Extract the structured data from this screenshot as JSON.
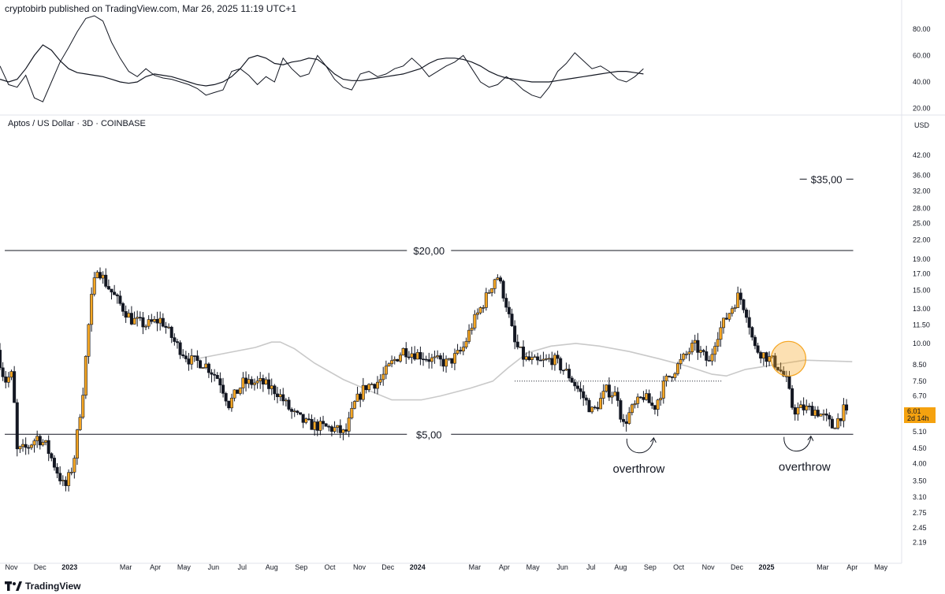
{
  "header": {
    "published": "cryptobirb published on TradingView.com, Mar 26, 2025 11:19 UTC+1",
    "symbol": "Aptos / US Dollar · 3D · COINBASE",
    "brand": "TradingView",
    "currency": "USD"
  },
  "price_tag": {
    "price": "6.01",
    "countdown": "2d 14h"
  },
  "chart_data": [
    {
      "type": "line",
      "panel": "oscillator",
      "ylim": [
        15,
        90
      ],
      "yticks": [
        "80.00",
        "60.00",
        "40.00",
        "20.00"
      ],
      "ytick_values": [
        80,
        60,
        40,
        20
      ],
      "x_start": "2022-10-20",
      "x_step_days": 9,
      "series": [
        {
          "values": [
            52,
            38,
            36,
            45,
            28,
            25,
            40,
            55,
            66,
            78,
            88,
            90,
            86,
            70,
            58,
            48,
            44,
            50,
            45,
            43,
            42,
            40,
            38,
            35,
            30,
            32,
            34,
            48,
            50,
            45,
            38,
            44,
            40,
            58,
            50,
            44,
            46,
            60,
            52,
            42,
            36,
            34,
            46,
            48,
            44,
            46,
            50,
            52,
            58,
            52,
            44,
            48,
            52,
            55,
            60,
            50,
            40,
            36,
            38,
            44,
            40,
            34,
            30,
            28,
            36,
            48,
            54,
            62,
            56,
            50,
            52,
            48,
            42,
            40,
            44,
            50
          ]
        },
        {
          "values": [
            42,
            40,
            42,
            50,
            60,
            68,
            64,
            56,
            50,
            47,
            46,
            45,
            44,
            42,
            40,
            39,
            40,
            44,
            46,
            45,
            44,
            42,
            40,
            38,
            37,
            38,
            40,
            44,
            50,
            58,
            60,
            58,
            54,
            53,
            55,
            56,
            58,
            57,
            52,
            46,
            42,
            41,
            41,
            42,
            43,
            44,
            45,
            46,
            48,
            50,
            54,
            57,
            58,
            58,
            57,
            55,
            52,
            48,
            45,
            43,
            42,
            41,
            40,
            40,
            40,
            41,
            42,
            43,
            44,
            45,
            46,
            47,
            48,
            48,
            47,
            46
          ]
        }
      ]
    },
    {
      "type": "candlestick",
      "panel": "price",
      "scale": "log",
      "ylim": [
        1.95,
        50
      ],
      "yticks": [
        "42.00",
        "36.00",
        "32.00",
        "28.00",
        "25.00",
        "22.00",
        "19.00",
        "17.00",
        "15.00",
        "13.00",
        "11.50",
        "10.00",
        "8.50",
        "7.50",
        "6.70",
        "5.10",
        "4.50",
        "4.00",
        "3.50",
        "3.10",
        "2.75",
        "2.45",
        "2.19"
      ],
      "ytick_values": [
        42,
        36,
        32,
        28,
        25,
        22,
        19,
        17,
        15,
        13,
        11.5,
        10,
        8.5,
        7.5,
        6.7,
        5.1,
        4.5,
        4,
        3.5,
        3.1,
        2.75,
        2.45,
        2.19
      ],
      "xticks": [
        "Nov",
        "Dec",
        "2023",
        "Mar",
        "Apr",
        "May",
        "Jun",
        "Jul",
        "Aug",
        "Sep",
        "Oct",
        "Nov",
        "Dec",
        "2024",
        "Mar",
        "Apr",
        "May",
        "Jun",
        "Jul",
        "Aug",
        "Sep",
        "Oct",
        "Nov",
        "Dec",
        "2025",
        "Mar",
        "Apr",
        "May"
      ],
      "xtick_dates": [
        "2022-11-01",
        "2022-12-01",
        "2023-01-01",
        "2023-03-01",
        "2023-04-01",
        "2023-05-01",
        "2023-06-01",
        "2023-07-01",
        "2023-08-01",
        "2023-09-01",
        "2023-10-01",
        "2023-11-01",
        "2023-12-01",
        "2024-01-01",
        "2024-03-01",
        "2024-04-01",
        "2024-05-01",
        "2024-06-01",
        "2024-07-01",
        "2024-08-01",
        "2024-09-01",
        "2024-10-01",
        "2024-11-01",
        "2024-12-01",
        "2025-01-01",
        "2025-03-01",
        "2025-04-01",
        "2025-05-01"
      ],
      "x_range": [
        "2022-10-20",
        "2025-05-22"
      ],
      "bull_color": "#f5a623",
      "bear_color": "#131722",
      "candle_days": 3,
      "start_date": "2022-10-20",
      "anchors": [
        [
          "2022-10-20",
          9.5
        ],
        [
          "2022-10-28",
          7.5
        ],
        [
          "2022-11-05",
          7.9
        ],
        [
          "2022-11-10",
          4.4
        ],
        [
          "2022-11-20",
          4.5
        ],
        [
          "2022-12-01",
          4.9
        ],
        [
          "2022-12-10",
          4.6
        ],
        [
          "2022-12-20",
          3.9
        ],
        [
          "2022-12-30",
          3.3
        ],
        [
          "2023-01-08",
          4.0
        ],
        [
          "2023-01-18",
          7.0
        ],
        [
          "2023-01-26",
          13.5
        ],
        [
          "2023-02-02",
          18.0
        ],
        [
          "2023-02-10",
          16.0
        ],
        [
          "2023-02-22",
          14.0
        ],
        [
          "2023-03-10",
          12.0
        ],
        [
          "2023-03-25",
          11.5
        ],
        [
          "2023-04-10",
          12.0
        ],
        [
          "2023-04-25",
          10.0
        ],
        [
          "2023-05-10",
          8.8
        ],
        [
          "2023-05-25",
          8.6
        ],
        [
          "2023-06-10",
          7.6
        ],
        [
          "2023-06-20",
          6.3
        ],
        [
          "2023-07-05",
          7.4
        ],
        [
          "2023-07-25",
          7.4
        ],
        [
          "2023-08-10",
          6.9
        ],
        [
          "2023-08-25",
          5.9
        ],
        [
          "2023-09-10",
          5.4
        ],
        [
          "2023-09-25",
          5.3
        ],
        [
          "2023-10-10",
          5.2
        ],
        [
          "2023-10-20",
          5.0
        ],
        [
          "2023-10-30",
          6.3
        ],
        [
          "2023-11-10",
          7.2
        ],
        [
          "2023-11-25",
          7.5
        ],
        [
          "2023-12-08",
          8.6
        ],
        [
          "2023-12-20",
          9.5
        ],
        [
          "2024-01-05",
          9.2
        ],
        [
          "2024-01-20",
          8.8
        ],
        [
          "2024-02-05",
          8.6
        ],
        [
          "2024-02-20",
          9.5
        ],
        [
          "2024-03-01",
          11.5
        ],
        [
          "2024-03-15",
          14.0
        ],
        [
          "2024-03-27",
          17.0
        ],
        [
          "2024-04-05",
          14.0
        ],
        [
          "2024-04-15",
          10.0
        ],
        [
          "2024-04-25",
          8.9
        ],
        [
          "2024-05-10",
          8.6
        ],
        [
          "2024-05-25",
          8.9
        ],
        [
          "2024-06-10",
          7.9
        ],
        [
          "2024-06-25",
          6.7
        ],
        [
          "2024-07-06",
          5.9
        ],
        [
          "2024-07-20",
          7.0
        ],
        [
          "2024-08-01",
          6.7
        ],
        [
          "2024-08-06",
          5.3
        ],
        [
          "2024-08-15",
          6.0
        ],
        [
          "2024-08-28",
          6.7
        ],
        [
          "2024-09-08",
          6.1
        ],
        [
          "2024-09-20",
          7.5
        ],
        [
          "2024-10-05",
          8.6
        ],
        [
          "2024-10-20",
          9.9
        ],
        [
          "2024-11-05",
          8.6
        ],
        [
          "2024-11-12",
          10.5
        ],
        [
          "2024-11-25",
          12.5
        ],
        [
          "2024-12-06",
          14.5
        ],
        [
          "2024-12-15",
          12.5
        ],
        [
          "2024-12-22",
          9.7
        ],
        [
          "2025-01-05",
          9.0
        ],
        [
          "2025-01-15",
          8.5
        ],
        [
          "2025-01-25",
          7.5
        ],
        [
          "2025-02-01",
          6.0
        ],
        [
          "2025-02-12",
          6.1
        ],
        [
          "2025-02-25",
          6.0
        ],
        [
          "2025-03-08",
          5.6
        ],
        [
          "2025-03-14",
          5.3
        ],
        [
          "2025-03-20",
          5.6
        ],
        [
          "2025-03-26",
          6.01
        ]
      ],
      "series": [
        {
          "type": "line",
          "color": "#c9c9c9",
          "points": [
            [
              "2023-05-15",
              8.9
            ],
            [
              "2023-06-15",
              9.3
            ],
            [
              "2023-07-15",
              9.7
            ],
            [
              "2023-08-01",
              10.1
            ],
            [
              "2023-08-10",
              10.1
            ],
            [
              "2023-08-25",
              9.6
            ],
            [
              "2023-09-15",
              8.6
            ],
            [
              "2023-10-15",
              7.6
            ],
            [
              "2023-11-15",
              6.9
            ],
            [
              "2023-12-05",
              6.5
            ],
            [
              "2024-01-05",
              6.5
            ],
            [
              "2024-01-25",
              6.7
            ],
            [
              "2024-02-25",
              7.1
            ],
            [
              "2024-03-20",
              7.5
            ],
            [
              "2024-04-05",
              8.3
            ],
            [
              "2024-04-25",
              9.3
            ],
            [
              "2024-05-20",
              9.8
            ],
            [
              "2024-06-15",
              10.0
            ],
            [
              "2024-07-10",
              9.8
            ],
            [
              "2024-08-10",
              9.4
            ],
            [
              "2024-09-10",
              8.9
            ],
            [
              "2024-10-10",
              8.4
            ],
            [
              "2024-11-05",
              7.9
            ],
            [
              "2024-11-20",
              7.8
            ],
            [
              "2024-12-10",
              8.2
            ],
            [
              "2025-01-10",
              8.5
            ],
            [
              "2025-02-10",
              8.8
            ],
            [
              "2025-04-01",
              8.7
            ]
          ]
        }
      ],
      "levels": [
        {
          "label": "$20,00",
          "price": 20.3
        },
        {
          "label": "$5,00",
          "price": 5.0
        },
        {
          "label": "$35,00",
          "price": 35.0
        }
      ],
      "dotted_level": {
        "price": 7.5,
        "from": "2024-04-12",
        "to": "2024-11-15"
      },
      "highlight_circle": {
        "date": "2025-01-15",
        "price": 8.9
      },
      "annotations": [
        {
          "text": "overthrow",
          "date": "2024-08-20",
          "price": 3.85
        },
        {
          "text": "overthrow",
          "date": "2025-02-10",
          "price": 3.9
        }
      ]
    }
  ]
}
